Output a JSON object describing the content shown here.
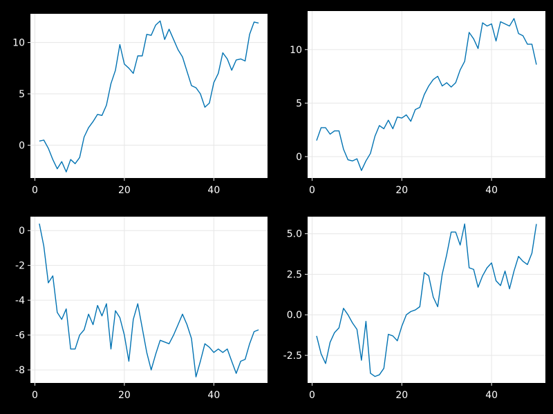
{
  "colors": {
    "background": "#000000",
    "plot_background": "#ffffff",
    "series": "#0072b2",
    "grid": "#e6e6e6",
    "text": "#ffffff"
  },
  "chart_data": [
    {
      "type": "line",
      "grid": true,
      "xlim": [
        -1,
        52
      ],
      "ylim": [
        -3.2,
        12.8
      ],
      "xticks": [
        0,
        20,
        40
      ],
      "yticks": [
        0,
        5,
        10
      ],
      "series": [
        {
          "x": [
            1,
            2,
            3,
            4,
            5,
            6,
            7,
            8,
            9,
            10,
            11,
            12,
            13,
            14,
            15,
            16,
            17,
            18,
            19,
            20,
            21,
            22,
            23,
            24,
            25,
            26,
            27,
            28,
            29,
            30,
            31,
            32,
            33,
            34,
            35,
            36,
            37,
            38,
            39,
            40,
            41,
            42,
            43,
            44,
            45,
            46,
            47,
            48,
            49,
            50
          ],
          "values": [
            0.4,
            0.5,
            -0.3,
            -1.4,
            -2.3,
            -1.6,
            -2.6,
            -1.4,
            -1.8,
            -1.2,
            0.8,
            1.7,
            2.3,
            3.0,
            2.9,
            3.9,
            6.0,
            7.3,
            9.8,
            7.9,
            7.5,
            7.0,
            8.7,
            8.7,
            10.8,
            10.7,
            11.7,
            12.1,
            10.3,
            11.3,
            10.3,
            9.3,
            8.6,
            7.2,
            5.8,
            5.6,
            5.0,
            3.7,
            4.1,
            6.1,
            7.0,
            9.0,
            8.4,
            7.3,
            8.3,
            8.4,
            8.2,
            10.8,
            12.0,
            11.9
          ]
        }
      ]
    },
    {
      "type": "line",
      "grid": true,
      "xlim": [
        -1,
        52
      ],
      "ylim": [
        -2.0,
        13.6
      ],
      "xticks": [
        0,
        20,
        40
      ],
      "yticks": [
        0,
        5,
        10
      ],
      "series": [
        {
          "x": [
            1,
            2,
            3,
            4,
            5,
            6,
            7,
            8,
            9,
            10,
            11,
            12,
            13,
            14,
            15,
            16,
            17,
            18,
            19,
            20,
            21,
            22,
            23,
            24,
            25,
            26,
            27,
            28,
            29,
            30,
            31,
            32,
            33,
            34,
            35,
            36,
            37,
            38,
            39,
            40,
            41,
            42,
            43,
            44,
            45,
            46,
            47,
            48,
            49,
            50
          ],
          "values": [
            1.5,
            2.7,
            2.7,
            2.1,
            2.4,
            2.4,
            0.7,
            -0.3,
            -0.4,
            -0.2,
            -1.3,
            -0.4,
            0.3,
            1.9,
            2.9,
            2.6,
            3.4,
            2.6,
            3.7,
            3.6,
            3.9,
            3.3,
            4.4,
            4.6,
            5.8,
            6.6,
            7.2,
            7.5,
            6.6,
            6.9,
            6.5,
            6.9,
            8.1,
            8.9,
            11.6,
            11.0,
            10.1,
            12.5,
            12.2,
            12.4,
            10.8,
            12.6,
            12.4,
            12.2,
            12.9,
            11.5,
            11.3,
            10.5,
            10.5,
            8.6
          ]
        }
      ]
    },
    {
      "type": "line",
      "grid": true,
      "xlim": [
        -1,
        52
      ],
      "ylim": [
        -8.75,
        0.8
      ],
      "xticks": [
        0,
        20,
        40
      ],
      "yticks": [
        0,
        -2,
        -4,
        -6,
        -8
      ],
      "series": [
        {
          "x": [
            1,
            2,
            3,
            4,
            5,
            6,
            7,
            8,
            9,
            10,
            11,
            12,
            13,
            14,
            15,
            16,
            17,
            18,
            19,
            20,
            21,
            22,
            23,
            24,
            25,
            26,
            27,
            28,
            29,
            30,
            31,
            32,
            33,
            34,
            35,
            36,
            37,
            38,
            39,
            40,
            41,
            42,
            43,
            44,
            45,
            46,
            47,
            48,
            49,
            50
          ],
          "values": [
            0.4,
            -0.9,
            -3.0,
            -2.6,
            -4.7,
            -5.1,
            -4.5,
            -6.8,
            -6.8,
            -6.0,
            -5.7,
            -4.8,
            -5.4,
            -4.3,
            -4.9,
            -4.2,
            -6.8,
            -4.6,
            -5.0,
            -6.0,
            -7.5,
            -5.1,
            -4.2,
            -5.6,
            -7.0,
            -8.0,
            -7.1,
            -6.3,
            -6.4,
            -6.5,
            -6.0,
            -5.4,
            -4.8,
            -5.4,
            -6.2,
            -8.4,
            -7.5,
            -6.5,
            -6.7,
            -7.0,
            -6.8,
            -7.0,
            -6.8,
            -7.5,
            -8.2,
            -7.5,
            -7.4,
            -6.5,
            -5.8,
            -5.7
          ]
        }
      ]
    },
    {
      "type": "line",
      "grid": true,
      "xlim": [
        -1,
        52
      ],
      "ylim": [
        -4.2,
        6.05
      ],
      "xticks": [
        0,
        20,
        40
      ],
      "yticks": [
        5.0,
        2.5,
        0.0,
        -2.5
      ],
      "ytick_labels": [
        "5.0",
        "2.5",
        "0.0",
        "-2.5"
      ],
      "series": [
        {
          "x": [
            1,
            2,
            3,
            4,
            5,
            6,
            7,
            8,
            9,
            10,
            11,
            12,
            13,
            14,
            15,
            16,
            17,
            18,
            19,
            20,
            21,
            22,
            23,
            24,
            25,
            26,
            27,
            28,
            29,
            30,
            31,
            32,
            33,
            34,
            35,
            36,
            37,
            38,
            39,
            40,
            41,
            42,
            43,
            44,
            45,
            46,
            47,
            48,
            49,
            50
          ],
          "values": [
            -1.3,
            -2.4,
            -3.0,
            -1.7,
            -1.1,
            -0.8,
            0.4,
            0.0,
            -0.5,
            -0.9,
            -2.8,
            -0.4,
            -3.6,
            -3.8,
            -3.7,
            -3.3,
            -1.2,
            -1.3,
            -1.6,
            -0.7,
            0.0,
            0.2,
            0.3,
            0.5,
            2.6,
            2.4,
            1.1,
            0.5,
            2.5,
            3.7,
            5.1,
            5.1,
            4.3,
            5.6,
            2.9,
            2.8,
            1.7,
            2.4,
            2.9,
            3.2,
            2.1,
            1.8,
            2.7,
            1.6,
            2.7,
            3.6,
            3.3,
            3.1,
            3.8,
            5.6
          ]
        }
      ]
    }
  ]
}
